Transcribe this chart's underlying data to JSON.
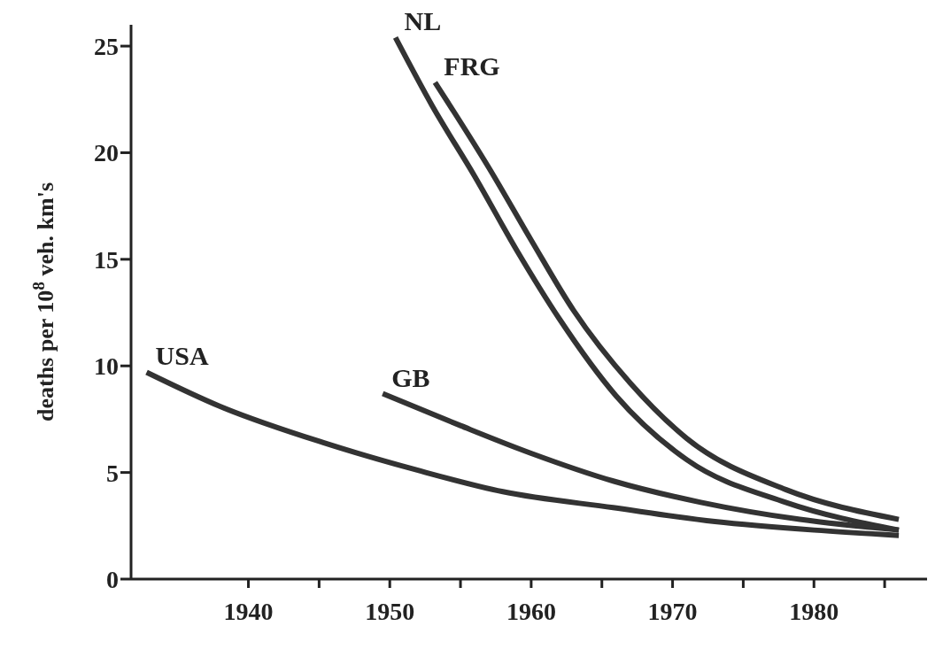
{
  "chart_data": {
    "type": "line",
    "ylabel": "deaths per 10$^{8}$ veh. km's",
    "xlim": [
      1931.7,
      1988
    ],
    "xticks": [
      1940,
      {
        "value": 1945,
        "label": null
      },
      1950,
      {
        "value": 1955,
        "label": null
      },
      1960,
      {
        "value": 1965,
        "label": null
      },
      1970,
      {
        "value": 1975,
        "label": null
      },
      1980,
      {
        "value": 1985,
        "label": null
      }
    ],
    "ylim": [
      0,
      26
    ],
    "yticks": [
      0,
      5,
      10,
      15,
      20,
      25
    ],
    "marker": "none",
    "line_style": "solid",
    "series": [
      {
        "name": "NL",
        "color": "#333333",
        "x": [
          1950.4,
          1953,
          1956,
          1959,
          1962,
          1966,
          1971,
          1978,
          1986
        ],
        "values": [
          25.4,
          22.2,
          18.9,
          15.4,
          12.2,
          8.6,
          5.6,
          3.6,
          2.3
        ]
      },
      {
        "name": "FRG",
        "color": "#333333",
        "x": [
          1953.2,
          1957,
          1960,
          1963,
          1967,
          1971,
          1978,
          1986
        ],
        "values": [
          23.3,
          19.3,
          15.9,
          12.6,
          9.2,
          6.6,
          4.2,
          2.8
        ]
      },
      {
        "name": "GB",
        "color": "#333333",
        "x": [
          1949.5,
          1955,
          1960,
          1965.8,
          1972,
          1979,
          1986
        ],
        "values": [
          8.7,
          7.2,
          5.9,
          4.6,
          3.6,
          2.8,
          2.3
        ]
      },
      {
        "name": "USA",
        "color": "#333333",
        "x": [
          1932.8,
          1938,
          1945.3,
          1952,
          1958,
          1965.8,
          1973,
          1980,
          1986
        ],
        "values": [
          9.7,
          8.1,
          6.4,
          5.1,
          4.1,
          3.35,
          2.7,
          2.3,
          2.05
        ]
      }
    ]
  }
}
